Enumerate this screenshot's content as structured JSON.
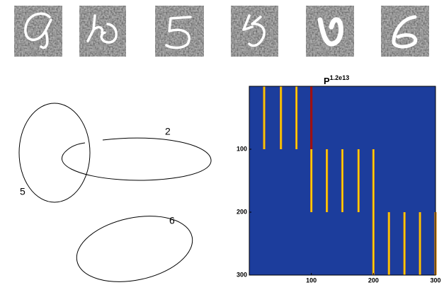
{
  "diagram": {
    "labels": [
      "2",
      "5",
      "6"
    ]
  },
  "chart_data": {
    "type": "heatmap",
    "title": "P",
    "title_superscript": "1.2e13",
    "xlim": [
      0,
      300
    ],
    "ylim": [
      0,
      300
    ],
    "xticks": [
      100,
      200,
      300
    ],
    "yticks": [
      100,
      200,
      300
    ],
    "background": "#1c3d9c",
    "stripes": [
      {
        "x": 24,
        "y0": 0,
        "y1": 100,
        "color": "#f08c10"
      },
      {
        "x": 51,
        "y0": 0,
        "y1": 100,
        "color": "#f08c10"
      },
      {
        "x": 76,
        "y0": 0,
        "y1": 100,
        "color": "#f08c10"
      },
      {
        "x": 100,
        "y0": 0,
        "y1": 100,
        "color": "#a01010"
      },
      {
        "x": 100,
        "y0": 100,
        "y1": 200,
        "color": "#f08c10"
      },
      {
        "x": 125,
        "y0": 100,
        "y1": 200,
        "color": "#f08c10"
      },
      {
        "x": 150,
        "y0": 100,
        "y1": 200,
        "color": "#f08c10"
      },
      {
        "x": 176,
        "y0": 100,
        "y1": 200,
        "color": "#f08c10"
      },
      {
        "x": 200,
        "y0": 100,
        "y1": 200,
        "color": "#f08c10"
      },
      {
        "x": 200,
        "y0": 200,
        "y1": 300,
        "color": "#f08c10"
      },
      {
        "x": 225,
        "y0": 200,
        "y1": 300,
        "color": "#f08c10"
      },
      {
        "x": 250,
        "y0": 200,
        "y1": 300,
        "color": "#f08c10"
      },
      {
        "x": 275,
        "y0": 200,
        "y1": 300,
        "color": "#f08c10"
      },
      {
        "x": 300,
        "y0": 200,
        "y1": 300,
        "color": "#f08c10"
      }
    ]
  }
}
